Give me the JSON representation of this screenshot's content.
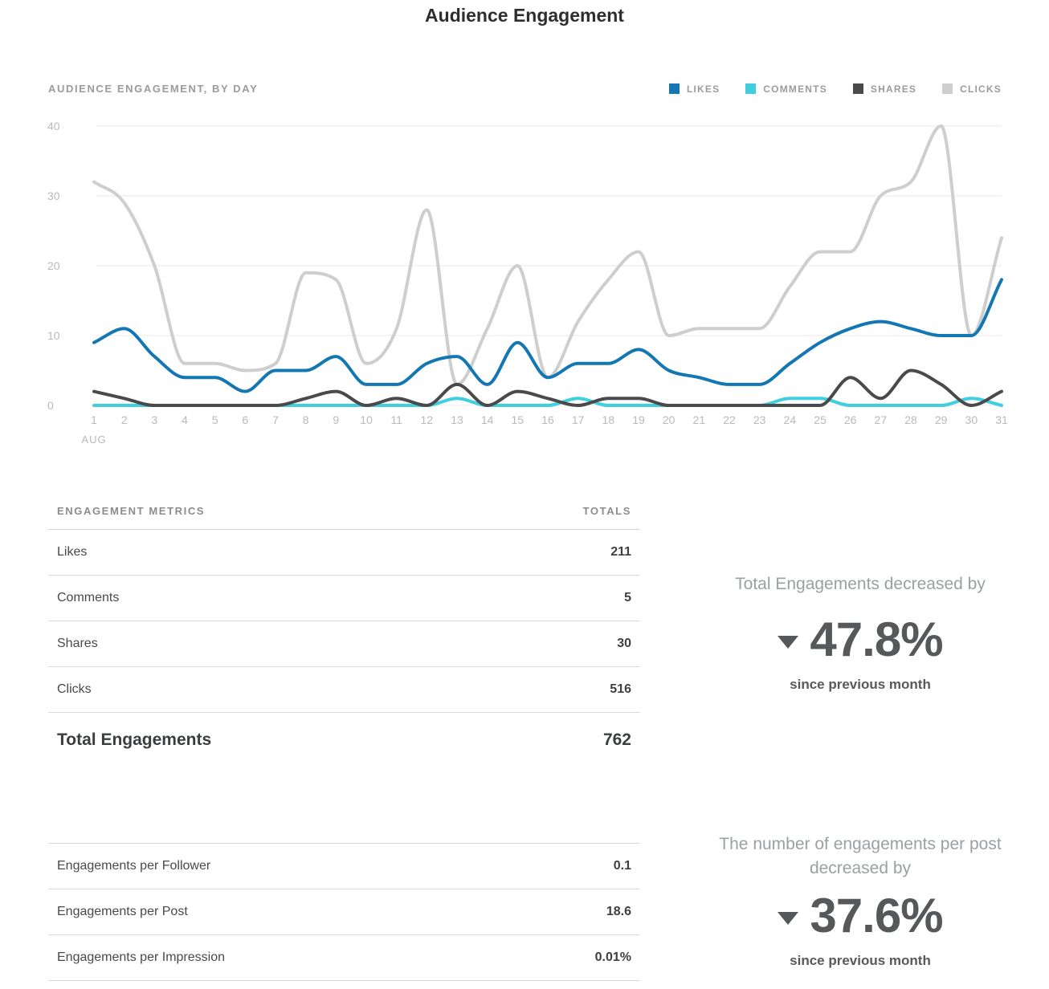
{
  "page": {
    "title": "Audience Engagement"
  },
  "chart": {
    "section_title": "AUDIENCE ENGAGEMENT, BY DAY",
    "month_label": "AUG",
    "axis_color": "#b6babd",
    "grid_color": "#e8e8e8",
    "legend": [
      {
        "label": "LIKES",
        "color": "#1277b2"
      },
      {
        "label": "COMMENTS",
        "color": "#3fcfdf"
      },
      {
        "label": "SHARES",
        "color": "#4a4a4a"
      },
      {
        "label": "CLICKS",
        "color": "#cecece"
      }
    ]
  },
  "chart_data": {
    "type": "line",
    "title": "Audience Engagement, by Day",
    "x_month": "AUG",
    "x": [
      1,
      2,
      3,
      4,
      5,
      6,
      7,
      8,
      9,
      10,
      11,
      12,
      13,
      14,
      15,
      16,
      17,
      18,
      19,
      20,
      21,
      22,
      23,
      24,
      25,
      26,
      27,
      28,
      29,
      30,
      31
    ],
    "yticks": [
      0,
      10,
      20,
      30,
      40
    ],
    "ylim": [
      0,
      40
    ],
    "grid": true,
    "legend_position": "top-right",
    "series": [
      {
        "name": "Likes",
        "color": "#1277b2",
        "values": [
          9,
          11,
          7,
          4,
          4,
          2,
          5,
          5,
          7,
          3,
          3,
          6,
          7,
          3,
          9,
          4,
          6,
          6,
          8,
          5,
          4,
          3,
          3,
          6,
          9,
          11,
          12,
          11,
          10,
          10,
          18
        ]
      },
      {
        "name": "Comments",
        "color": "#3fcfdf",
        "values": [
          0,
          0,
          0,
          0,
          0,
          0,
          0,
          0,
          0,
          0,
          0,
          0,
          1,
          0,
          0,
          0,
          1,
          0,
          0,
          0,
          0,
          0,
          0,
          1,
          1,
          0,
          0,
          0,
          0,
          1,
          0
        ]
      },
      {
        "name": "Shares",
        "color": "#4a4a4a",
        "values": [
          2,
          1,
          0,
          0,
          0,
          0,
          0,
          1,
          2,
          0,
          1,
          0,
          3,
          0,
          2,
          1,
          0,
          1,
          1,
          0,
          0,
          0,
          0,
          0,
          0,
          4,
          1,
          5,
          3,
          0,
          2
        ]
      },
      {
        "name": "Clicks",
        "color": "#cecece",
        "values": [
          32,
          29,
          20,
          6,
          6,
          5,
          6,
          19,
          18,
          6,
          11,
          28,
          3,
          11,
          20,
          4,
          12,
          18,
          22,
          10,
          11,
          11,
          11,
          17,
          22,
          22,
          30,
          32,
          40,
          10,
          24
        ]
      }
    ]
  },
  "metrics_table": {
    "col_label": "ENGAGEMENT METRICS",
    "col_value": "TOTALS",
    "rows": [
      {
        "label": "Likes",
        "value": "211"
      },
      {
        "label": "Comments",
        "value": "5"
      },
      {
        "label": "Shares",
        "value": "30"
      },
      {
        "label": "Clicks",
        "value": "516"
      }
    ],
    "total_label": "Total Engagements",
    "total_value": "762"
  },
  "ratios_table": {
    "rows": [
      {
        "label": "Engagements per Follower",
        "value": "0.1"
      },
      {
        "label": "Engagements per Post",
        "value": "18.6"
      },
      {
        "label": "Engagements per Impression",
        "value": "0.01%"
      }
    ]
  },
  "stats": [
    {
      "heading": "Total Engagements decreased by",
      "direction": "down",
      "value": "47.8%",
      "caption": "since previous month"
    },
    {
      "heading": "The number of engagements per post decreased by",
      "direction": "down",
      "value": "37.6%",
      "caption": "since previous month"
    }
  ]
}
